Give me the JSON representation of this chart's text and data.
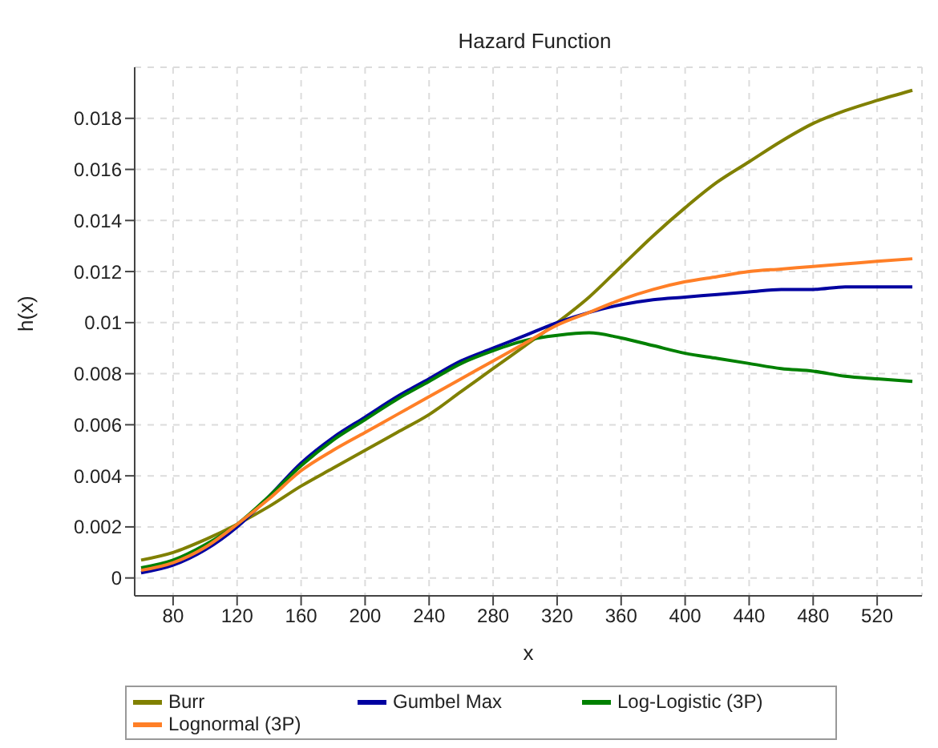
{
  "chart_data": {
    "type": "line",
    "title": "Hazard Function",
    "xlabel": "x",
    "ylabel": "h(x)",
    "x": [
      60,
      80,
      100,
      120,
      140,
      160,
      180,
      200,
      220,
      240,
      260,
      280,
      300,
      320,
      340,
      360,
      380,
      400,
      420,
      440,
      460,
      480,
      500,
      520,
      542
    ],
    "series": [
      {
        "name": "Burr",
        "color": "#808000",
        "values": [
          0.0007,
          0.001,
          0.0015,
          0.0021,
          0.0028,
          0.0036,
          0.0043,
          0.005,
          0.0057,
          0.0064,
          0.0073,
          0.0082,
          0.0091,
          0.01,
          0.011,
          0.0122,
          0.0134,
          0.0145,
          0.0155,
          0.0163,
          0.0171,
          0.0178,
          0.0183,
          0.0187,
          0.0191
        ]
      },
      {
        "name": "Gumbel Max",
        "color": "#0000a0",
        "values": [
          0.0002,
          0.0005,
          0.0011,
          0.002,
          0.0032,
          0.0045,
          0.0055,
          0.0063,
          0.0071,
          0.0078,
          0.0085,
          0.009,
          0.0095,
          0.01,
          0.0104,
          0.0107,
          0.0109,
          0.011,
          0.0111,
          0.0112,
          0.0113,
          0.0113,
          0.0114,
          0.0114,
          0.0114
        ]
      },
      {
        "name": "Log-Logistic (3P)",
        "color": "#008000",
        "values": [
          0.0004,
          0.0007,
          0.0013,
          0.0021,
          0.0032,
          0.0044,
          0.0054,
          0.0062,
          0.007,
          0.0077,
          0.0084,
          0.0089,
          0.0093,
          0.0095,
          0.0096,
          0.0094,
          0.0091,
          0.0088,
          0.0086,
          0.0084,
          0.0082,
          0.0081,
          0.0079,
          0.0078,
          0.0077
        ]
      },
      {
        "name": "Lognormal (3P)",
        "color": "#ff7f27",
        "values": [
          0.0003,
          0.0006,
          0.0012,
          0.0021,
          0.0031,
          0.0042,
          0.005,
          0.0057,
          0.0064,
          0.0071,
          0.0078,
          0.0085,
          0.0092,
          0.0099,
          0.0104,
          0.0109,
          0.0113,
          0.0116,
          0.0118,
          0.012,
          0.0121,
          0.0122,
          0.0123,
          0.0124,
          0.0125
        ]
      }
    ],
    "xlim": [
      56,
      548
    ],
    "xticks": [
      80,
      120,
      160,
      200,
      240,
      280,
      320,
      360,
      400,
      440,
      480,
      520
    ],
    "ylim": [
      -0.0007,
      0.02
    ],
    "yticks": [
      0,
      0.002,
      0.004,
      0.006,
      0.008,
      0.01,
      0.012,
      0.014,
      0.016,
      0.018
    ],
    "grid": true,
    "legend": "bottom",
    "marker": "none",
    "line_style": "solid"
  }
}
